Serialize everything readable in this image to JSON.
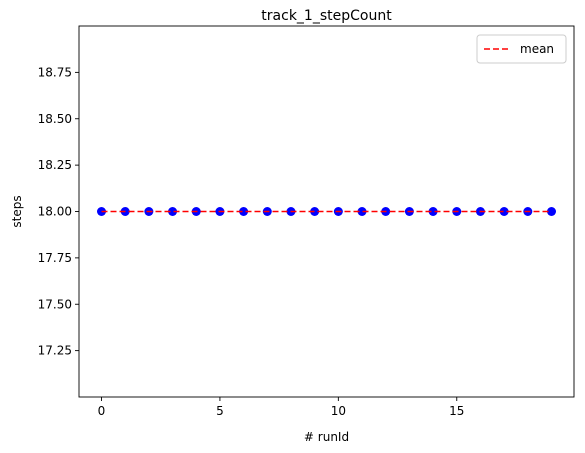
{
  "chart_data": {
    "type": "scatter",
    "title": "track_1_stepCount",
    "xlabel": "# runId",
    "ylabel": "steps",
    "xlim": [
      -0.95,
      19.95
    ],
    "ylim": [
      17.0,
      19.0
    ],
    "xticks": [
      0,
      5,
      10,
      15
    ],
    "yticks": [
      17.25,
      17.5,
      17.75,
      18.0,
      18.25,
      18.5,
      18.75
    ],
    "ytick_labels": [
      "17.25",
      "17.50",
      "17.75",
      "18.00",
      "18.25",
      "18.50",
      "18.75"
    ],
    "grid": false,
    "legend_position": "top-right",
    "series": [
      {
        "x": [
          0,
          1,
          2,
          3,
          4,
          5,
          6,
          7,
          8,
          9,
          10,
          11,
          12,
          13,
          14,
          15,
          16,
          17,
          18,
          19
        ],
        "values": [
          18,
          18,
          18,
          18,
          18,
          18,
          18,
          18,
          18,
          18,
          18,
          18,
          18,
          18,
          18,
          18,
          18,
          18,
          18,
          18
        ],
        "color": "#0000ff",
        "marker": "circle"
      },
      {
        "name": "mean",
        "x": [
          0,
          19
        ],
        "values": [
          18,
          18
        ],
        "color": "#ff0000",
        "style": "dashed"
      }
    ]
  }
}
